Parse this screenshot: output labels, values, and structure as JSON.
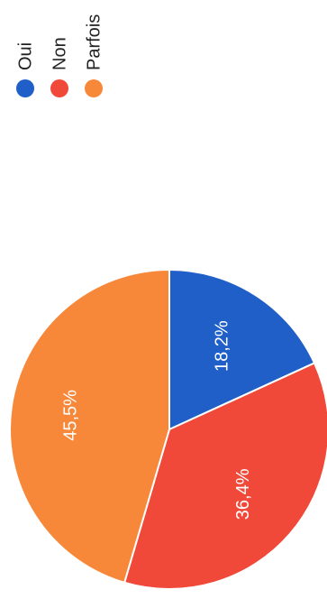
{
  "chart_data": {
    "type": "pie",
    "orientation": "rotated-90-clockwise",
    "legend_position": "top-right",
    "categories": [
      "Oui",
      "Non",
      "Parfois"
    ],
    "values": [
      18.2,
      36.4,
      45.5
    ],
    "data_labels": [
      "18,2%",
      "36,4%",
      "45,5%"
    ],
    "colors": [
      "#1f5fc7",
      "#f0493a",
      "#f7883a"
    ]
  }
}
